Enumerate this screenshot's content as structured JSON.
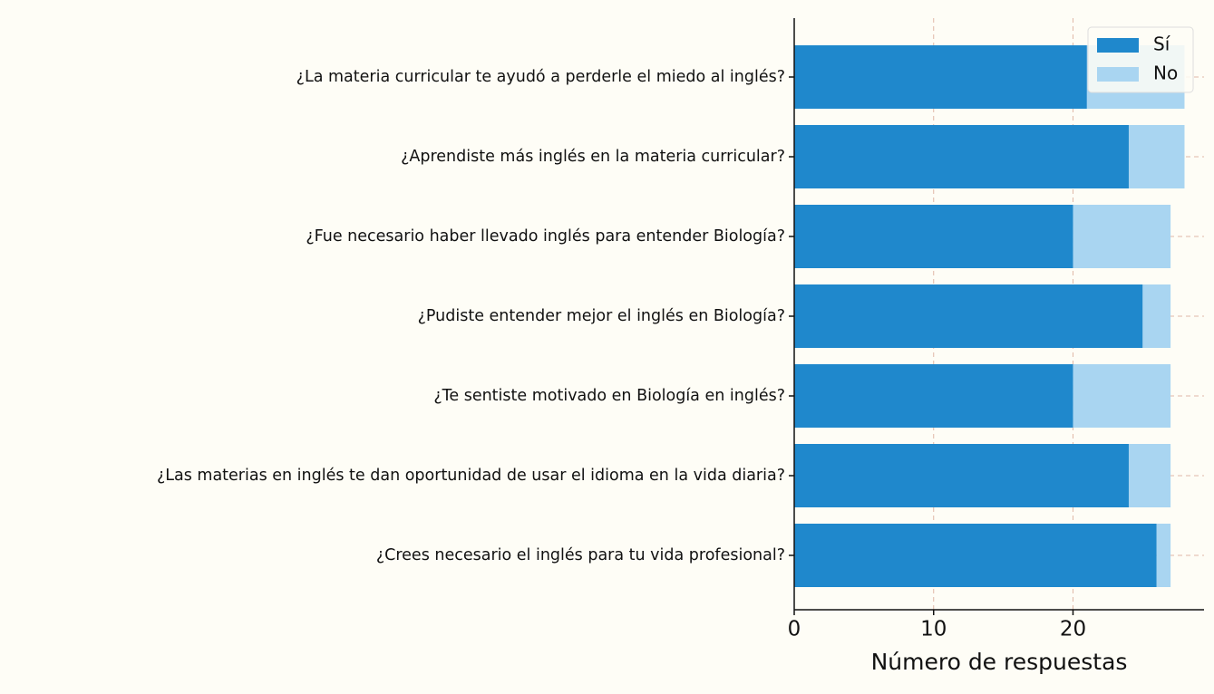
{
  "chart_data": {
    "type": "stacked_barh",
    "x_label": "Número de respuestas",
    "categories": [
      "¿La materia curricular te ayudó a perderle el miedo al inglés?",
      "¿Aprendiste más inglés en la materia curricular?",
      "¿Fue necesario haber llevado inglés para entender Biología?",
      "¿Pudiste entender mejor el inglés en Biología?",
      "¿Te sentiste motivado en Biología en inglés?",
      "¿Las materias en inglés te dan oportunidad de usar el idioma en la vida diaria?",
      "¿Crees necesario el inglés para tu vida profesional?"
    ],
    "series": [
      {
        "name": "Sí",
        "color": "#1f88cc",
        "values": [
          21,
          24,
          20,
          25,
          20,
          24,
          26
        ]
      },
      {
        "name": "No",
        "color": "#a9d5f1",
        "values": [
          7,
          4,
          7,
          2,
          7,
          3,
          1
        ]
      }
    ],
    "xlim": [
      0,
      29.4
    ],
    "xticks": [
      0,
      10,
      20
    ],
    "grid": true,
    "legend": "upper right"
  }
}
